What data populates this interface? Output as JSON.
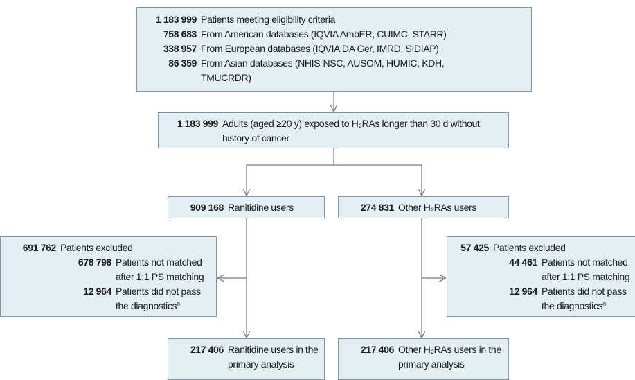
{
  "boxes": {
    "eligibility": {
      "count": "1 183 999",
      "label": "Patients meeting eligibility criteria",
      "items": [
        {
          "count": "758 683",
          "label": "From American databases (IQVIA AmbER, CUIMC, STARR)"
        },
        {
          "count": "338 957",
          "label": "From European databases (IQVIA DA Ger, IMRD, SIDIAP)"
        },
        {
          "count": "86 359",
          "label": "From Asian databases (NHIS-NSC, AUSOM, HUMIC, KDH, TMUCRDR)"
        }
      ]
    },
    "adults": {
      "count": "1 183 999",
      "label": "Adults (aged ≥20 y) exposed to H₂RAs longer than 30 d without history of cancer"
    },
    "ranitidine": {
      "count": "909 168",
      "label": "Ranitidine users"
    },
    "other": {
      "count": "274 831",
      "label": "Other H₂RAs users"
    },
    "ranitidine_excluded": {
      "count": "691 762",
      "label": "Patients excluded",
      "items": [
        {
          "count": "678 798",
          "label": "Patients not matched after 1:1 PS matching"
        },
        {
          "count": "12 964",
          "label": "Patients did not pass the diagnostics",
          "footnote": "a"
        }
      ]
    },
    "other_excluded": {
      "count": "57 425",
      "label": "Patients excluded",
      "items": [
        {
          "count": "44 461",
          "label": "Patients not matched after 1:1 PS matching"
        },
        {
          "count": "12 964",
          "label": "Patients did not pass the diagnostics",
          "footnote": "a"
        }
      ]
    },
    "ranitidine_primary": {
      "count": "217 406",
      "label": "Ranitidine users in the primary analysis"
    },
    "other_primary": {
      "count": "217 406",
      "label": "Other H₂RAs users in the primary analysis"
    }
  }
}
